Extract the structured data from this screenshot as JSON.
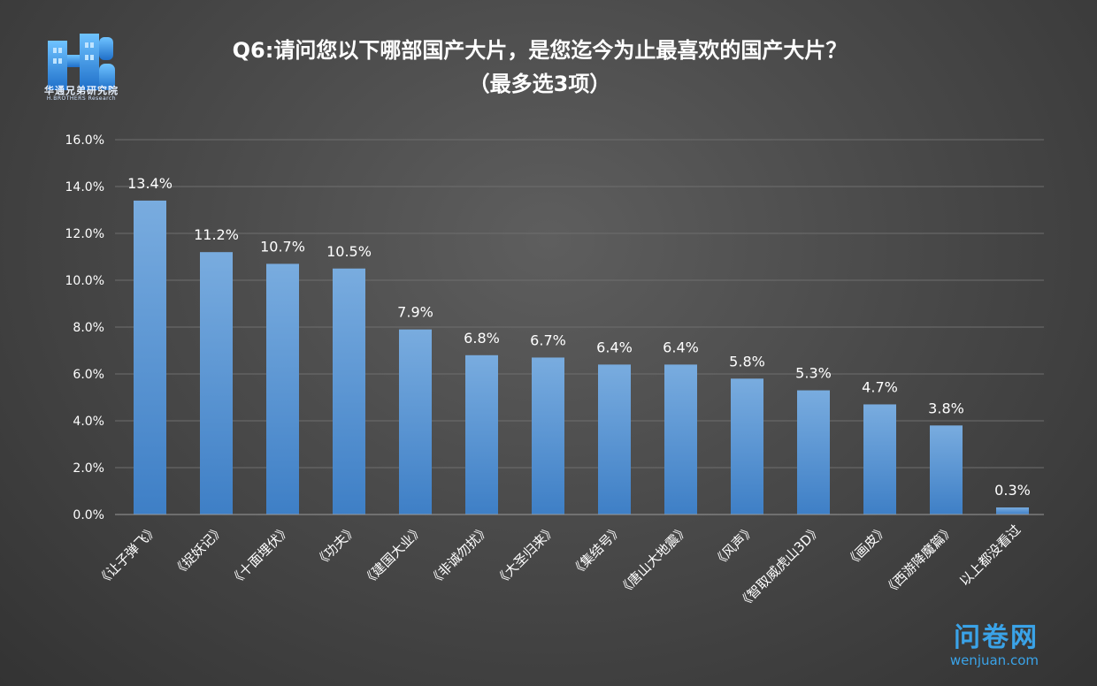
{
  "header": {
    "title_line1": "Q6:请问您以下哪部国产大片，是您迄今为止最喜欢的国产大片？",
    "title_line2": "（最多选3项）"
  },
  "logo": {
    "caption": "华通兄弟研究院",
    "subcaption": "H.BROTHERS  Research"
  },
  "watermark": {
    "main": "问卷网",
    "sub": "wenjuan.com"
  },
  "colors": {
    "bar_top": "#79acdf",
    "bar_bottom": "#3e7fc6",
    "grid": "#6e6e6e",
    "text": "#ffffff"
  },
  "chart_data": {
    "type": "bar",
    "title": "Q6:请问您以下哪部国产大片，是您迄今为止最喜欢的国产大片？（最多选3项）",
    "categories": [
      "《让子弹飞》",
      "《捉妖记》",
      "《十面埋伏》",
      "《功夫》",
      "《建国大业》",
      "《非诚勿扰》",
      "《大圣归来》",
      "《集结号》",
      "《唐山大地震》",
      "《风声》",
      "《智取威虎山3D》",
      "《画皮》",
      "《西游降魔篇》",
      "以上都没看过"
    ],
    "values": [
      13.4,
      11.2,
      10.7,
      10.5,
      7.9,
      6.8,
      6.7,
      6.4,
      6.4,
      5.8,
      5.3,
      4.7,
      3.8,
      0.3
    ],
    "data_labels": [
      "13.4%",
      "11.2%",
      "10.7%",
      "10.5%",
      "7.9%",
      "6.8%",
      "6.7%",
      "6.4%",
      "6.4%",
      "5.8%",
      "5.3%",
      "4.7%",
      "3.8%",
      "0.3%"
    ],
    "ylim": [
      0,
      16
    ],
    "yticks": [
      0,
      2,
      4,
      6,
      8,
      10,
      12,
      14,
      16
    ],
    "ytick_labels": [
      "0.0%",
      "2.0%",
      "4.0%",
      "6.0%",
      "8.0%",
      "10.0%",
      "12.0%",
      "14.0%",
      "16.0%"
    ],
    "grid": true,
    "legend": "none"
  }
}
